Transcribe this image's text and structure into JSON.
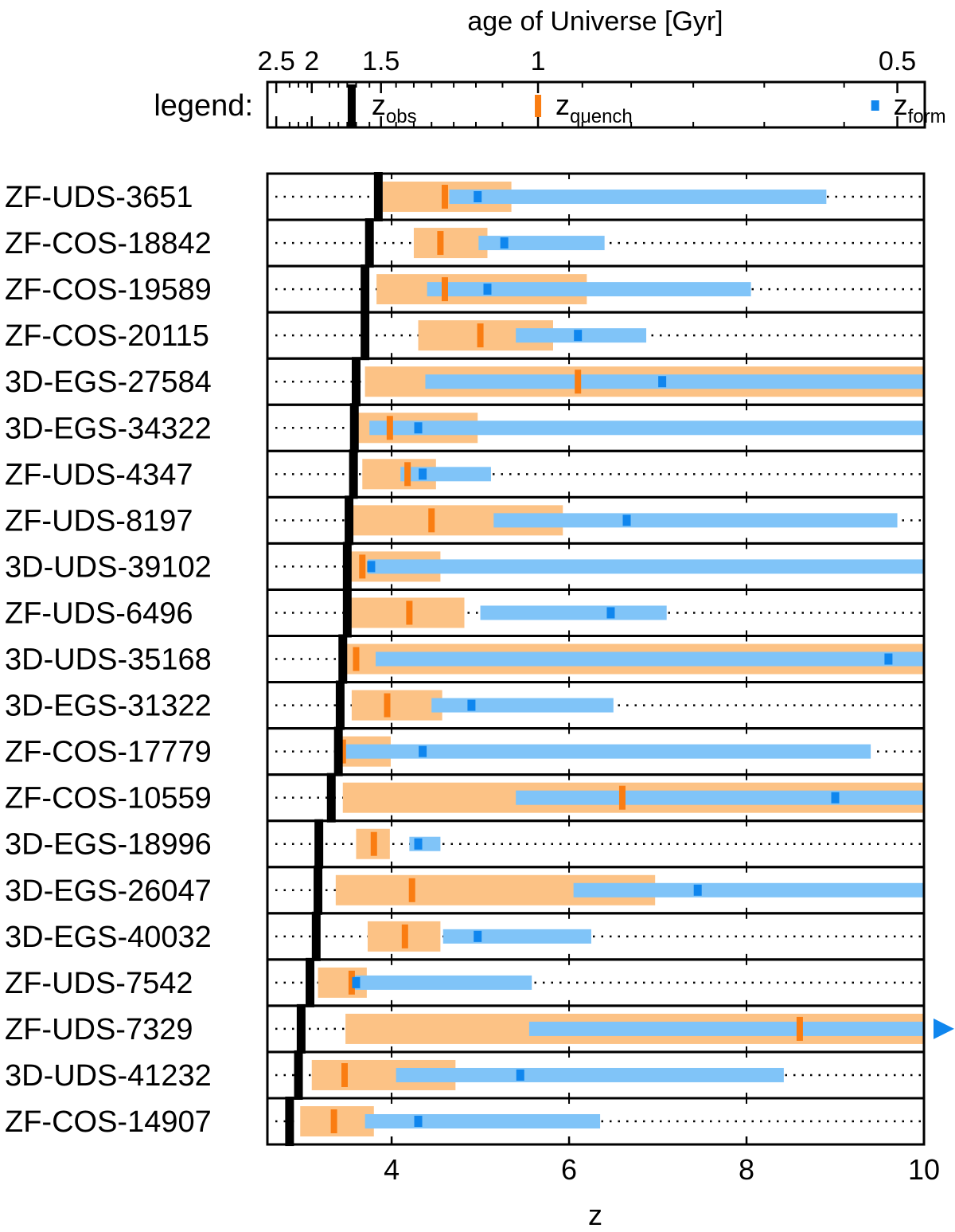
{
  "chart_data": {
    "type": "range-bars",
    "xlabel": "z",
    "top_axis_label": "age of Universe [Gyr]",
    "xlim": [
      2.6,
      10
    ],
    "x_ticks": [
      4,
      6,
      8,
      10
    ],
    "top_ticks": [
      {
        "label": "2.5",
        "z": 2.7
      },
      {
        "label": "2",
        "z": 3.1
      },
      {
        "label": "1.5",
        "z": 3.88
      },
      {
        "label": "1",
        "z": 5.65
      },
      {
        "label": "0.5",
        "z": 9.7
      }
    ],
    "top_minor_ticks_z": [
      2.85,
      2.95,
      3.05,
      3.3,
      3.4,
      3.5,
      3.6,
      3.75,
      4.05,
      4.25,
      4.45,
      4.7,
      4.95,
      5.25,
      6.15,
      6.7,
      7.4,
      8.2,
      9.1
    ],
    "legend": {
      "label": "legend:",
      "obs_z": 3.55,
      "quench_z": 5.65,
      "form_z": 9.45,
      "entries": [
        {
          "symbol": "z",
          "sub": "obs"
        },
        {
          "symbol": "z",
          "sub": "quench"
        },
        {
          "symbol": "z",
          "sub": "form"
        }
      ]
    },
    "series": [
      {
        "name": "ZF-UDS-3651",
        "z_obs": 3.85,
        "quench_lo": 3.9,
        "quench_hi": 5.35,
        "z_quench": 4.6,
        "form_lo": 4.65,
        "form_hi": 8.9,
        "z_form": 4.97,
        "arrow": false
      },
      {
        "name": "ZF-COS-18842",
        "z_obs": 3.75,
        "quench_lo": 4.25,
        "quench_hi": 5.08,
        "z_quench": 4.55,
        "form_lo": 4.98,
        "form_hi": 6.4,
        "z_form": 5.27,
        "arrow": false
      },
      {
        "name": "ZF-COS-19589",
        "z_obs": 3.7,
        "quench_lo": 3.83,
        "quench_hi": 6.2,
        "z_quench": 4.6,
        "form_lo": 4.4,
        "form_hi": 8.05,
        "z_form": 5.08,
        "arrow": false
      },
      {
        "name": "ZF-COS-20115",
        "z_obs": 3.7,
        "quench_lo": 4.3,
        "quench_hi": 5.82,
        "z_quench": 5.0,
        "form_lo": 5.4,
        "form_hi": 6.87,
        "z_form": 6.1,
        "arrow": false
      },
      {
        "name": "3D-EGS-27584",
        "z_obs": 3.6,
        "quench_lo": 3.7,
        "quench_hi": 10.0,
        "z_quench": 6.1,
        "form_lo": 4.38,
        "form_hi": 10.0,
        "z_form": 7.05,
        "arrow": false
      },
      {
        "name": "3D-EGS-34322",
        "z_obs": 3.58,
        "quench_lo": 3.6,
        "quench_hi": 4.97,
        "z_quench": 3.98,
        "form_lo": 3.75,
        "form_hi": 10.0,
        "z_form": 4.3,
        "arrow": false
      },
      {
        "name": "ZF-UDS-4347",
        "z_obs": 3.57,
        "quench_lo": 3.67,
        "quench_hi": 4.5,
        "z_quench": 4.18,
        "form_lo": 4.1,
        "form_hi": 5.12,
        "z_form": 4.35,
        "arrow": false
      },
      {
        "name": "ZF-UDS-8197",
        "z_obs": 3.52,
        "quench_lo": 3.53,
        "quench_hi": 5.93,
        "z_quench": 4.45,
        "form_lo": 5.15,
        "form_hi": 9.7,
        "z_form": 6.65,
        "arrow": false
      },
      {
        "name": "3D-UDS-39102",
        "z_obs": 3.5,
        "quench_lo": 3.52,
        "quench_hi": 4.55,
        "z_quench": 3.67,
        "form_lo": 3.73,
        "form_hi": 10.0,
        "z_form": 3.77,
        "arrow": false
      },
      {
        "name": "ZF-UDS-6496",
        "z_obs": 3.5,
        "quench_lo": 3.52,
        "quench_hi": 4.82,
        "z_quench": 4.2,
        "form_lo": 5.0,
        "form_hi": 7.1,
        "z_form": 6.47,
        "arrow": false
      },
      {
        "name": "3D-UDS-35168",
        "z_obs": 3.45,
        "quench_lo": 3.47,
        "quench_hi": 10.0,
        "z_quench": 3.6,
        "form_lo": 3.82,
        "form_hi": 10.0,
        "z_form": 9.6,
        "arrow": false
      },
      {
        "name": "3D-EGS-31322",
        "z_obs": 3.42,
        "quench_lo": 3.55,
        "quench_hi": 4.57,
        "z_quench": 3.95,
        "form_lo": 4.45,
        "form_hi": 6.5,
        "z_form": 4.9,
        "arrow": false
      },
      {
        "name": "ZF-COS-17779",
        "z_obs": 3.4,
        "quench_lo": 3.42,
        "quench_hi": 3.99,
        "z_quench": 3.45,
        "form_lo": 3.47,
        "form_hi": 9.4,
        "z_form": 4.35,
        "arrow": false
      },
      {
        "name": "ZF-COS-10559",
        "z_obs": 3.32,
        "quench_lo": 3.45,
        "quench_hi": 10.0,
        "z_quench": 6.6,
        "form_lo": 5.4,
        "form_hi": 10.0,
        "z_form": 9.0,
        "arrow": false
      },
      {
        "name": "3D-EGS-18996",
        "z_obs": 3.18,
        "quench_lo": 3.6,
        "quench_hi": 3.98,
        "z_quench": 3.8,
        "form_lo": 4.2,
        "form_hi": 4.55,
        "z_form": 4.3,
        "arrow": false
      },
      {
        "name": "3D-EGS-26047",
        "z_obs": 3.17,
        "quench_lo": 3.37,
        "quench_hi": 6.97,
        "z_quench": 4.23,
        "form_lo": 6.05,
        "form_hi": 10.0,
        "z_form": 7.45,
        "arrow": false
      },
      {
        "name": "3D-EGS-40032",
        "z_obs": 3.15,
        "quench_lo": 3.73,
        "quench_hi": 4.55,
        "z_quench": 4.15,
        "form_lo": 4.58,
        "form_hi": 6.25,
        "z_form": 4.97,
        "arrow": false
      },
      {
        "name": "ZF-UDS-7542",
        "z_obs": 3.08,
        "quench_lo": 3.17,
        "quench_hi": 3.72,
        "z_quench": 3.55,
        "form_lo": 3.57,
        "form_hi": 5.58,
        "z_form": 3.6,
        "arrow": false
      },
      {
        "name": "ZF-UDS-7329",
        "z_obs": 2.98,
        "quench_lo": 3.48,
        "quench_hi": 10.0,
        "z_quench": 8.6,
        "form_lo": 5.55,
        "form_hi": 10.0,
        "z_form": null,
        "arrow": true
      },
      {
        "name": "3D-UDS-41232",
        "z_obs": 2.95,
        "quench_lo": 3.1,
        "quench_hi": 4.72,
        "z_quench": 3.47,
        "form_lo": 4.05,
        "form_hi": 8.42,
        "z_form": 5.45,
        "arrow": false
      },
      {
        "name": "ZF-COS-14907",
        "z_obs": 2.85,
        "quench_lo": 2.97,
        "quench_hi": 3.8,
        "z_quench": 3.35,
        "form_lo": 3.7,
        "form_hi": 6.35,
        "z_form": 4.3,
        "arrow": false
      }
    ]
  }
}
